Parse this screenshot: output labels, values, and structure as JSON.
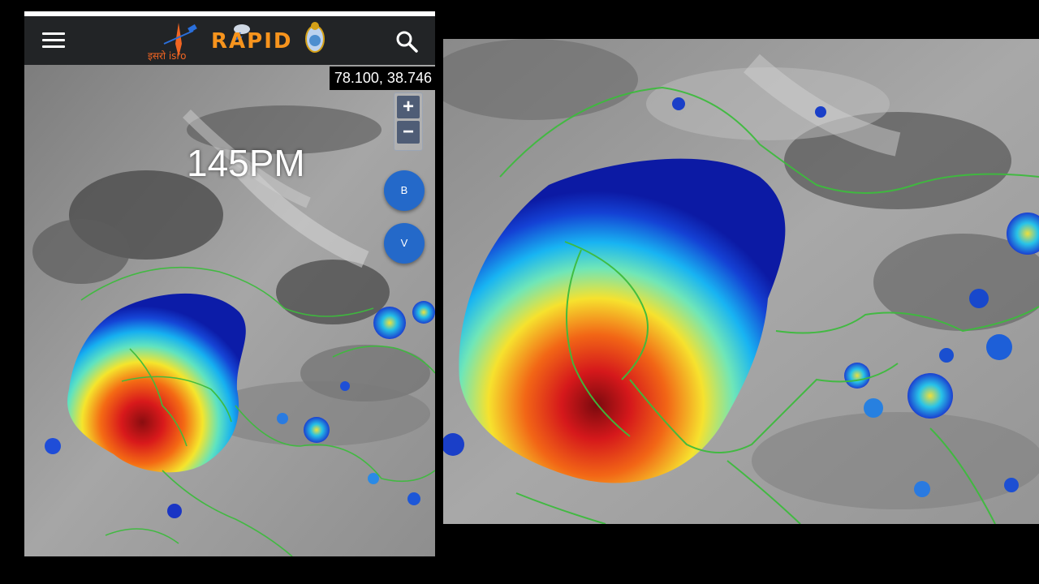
{
  "app": {
    "logo_text": "RAPID",
    "agency_text": "इसरो isro"
  },
  "header": {
    "menu_icon": "menu-icon",
    "search_icon": "search-icon"
  },
  "map": {
    "coordinates": "78.100, 38.746",
    "time_label": "145PM",
    "zoom_in_label": "+",
    "zoom_out_label": "−",
    "fab_b_label": "B",
    "fab_v_label": "V"
  },
  "colors": {
    "appbar": "#222426",
    "fab": "#2469c9",
    "border_line": "#3dbb3d",
    "storm_core": "#d4101a"
  }
}
